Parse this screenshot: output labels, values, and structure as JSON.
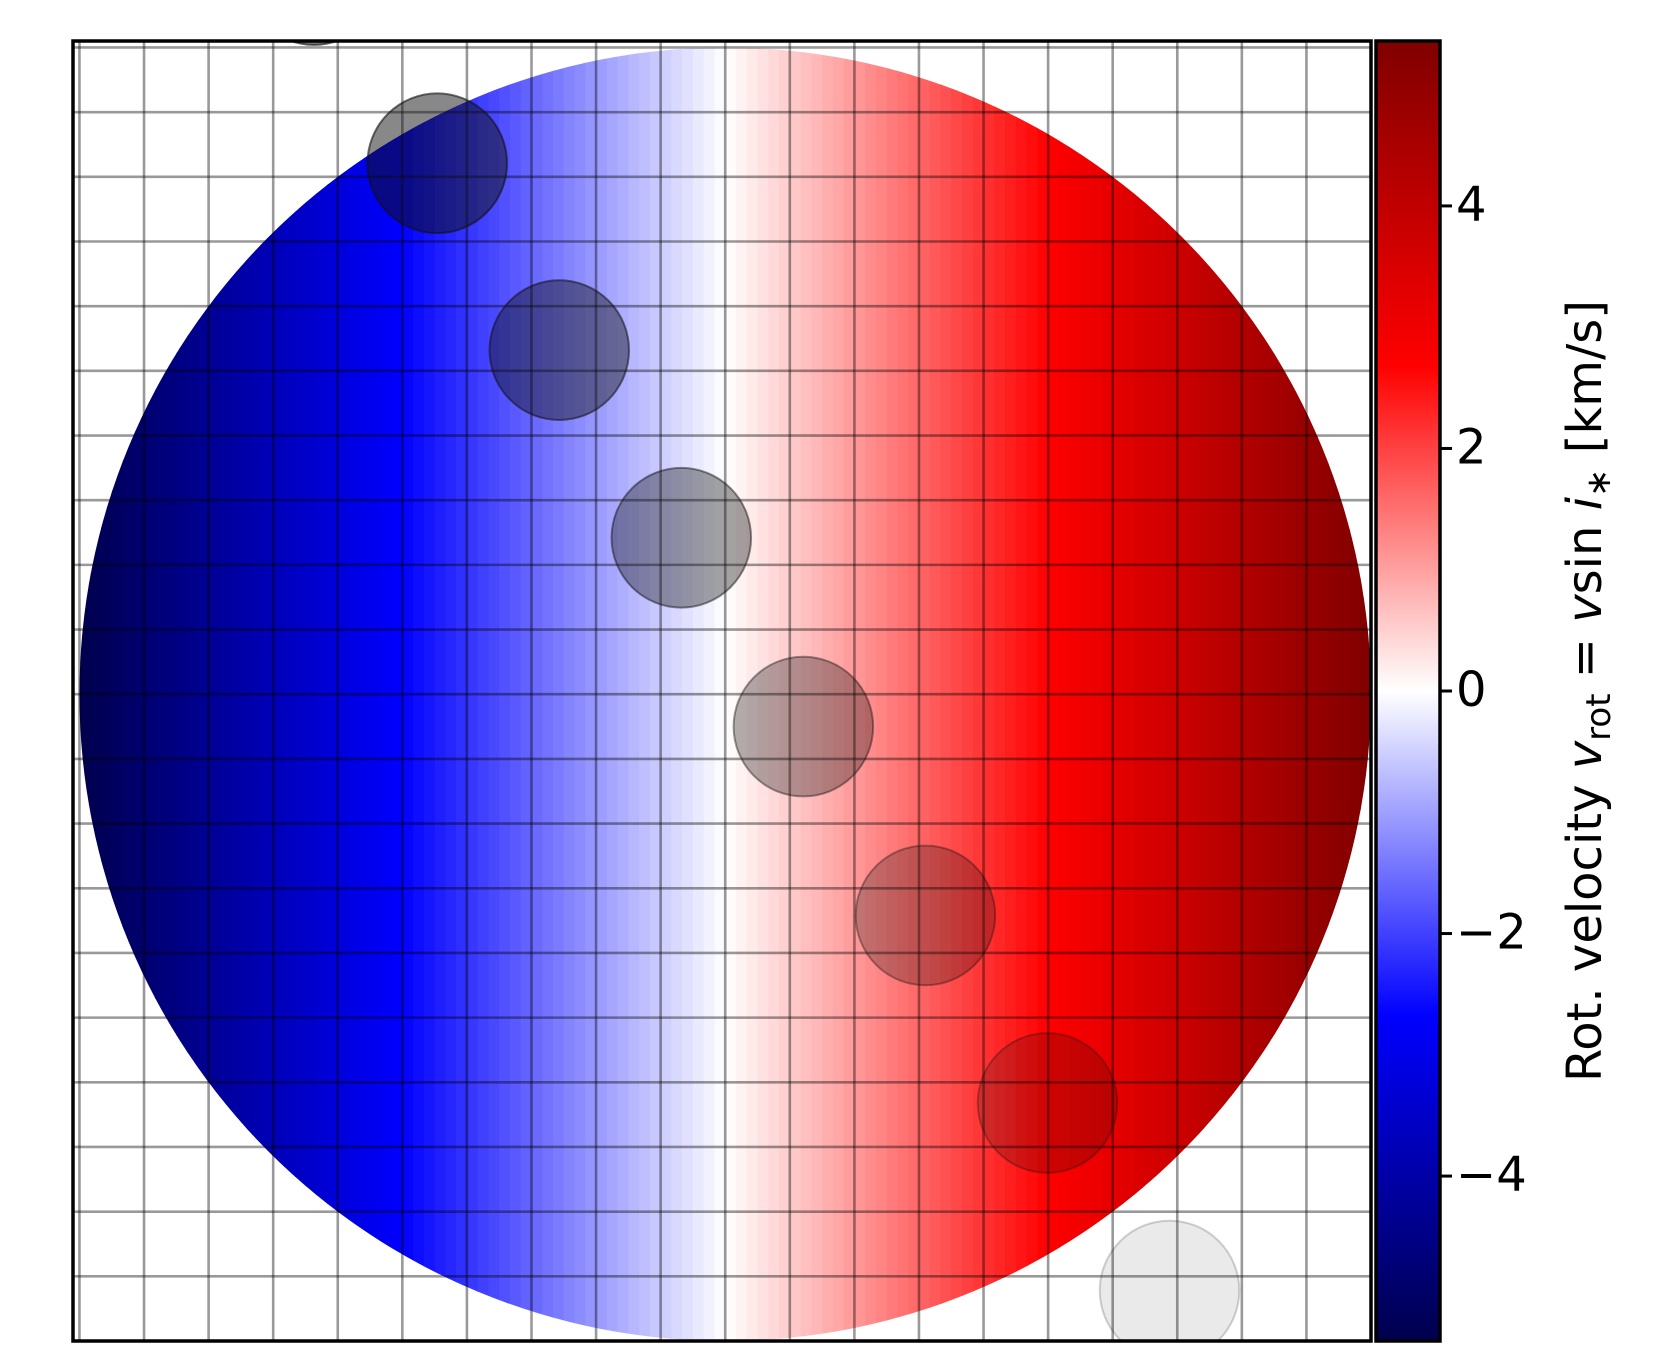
{
  "chart_data": {
    "type": "rotation-map",
    "xlim": [
      -1.01,
      1.0
    ],
    "ylim": [
      -1.0,
      1.01
    ],
    "xticks": [
      -1.0,
      -0.9,
      -0.8,
      -0.7,
      -0.6,
      -0.5,
      -0.4,
      -0.3,
      -0.2,
      -0.1,
      0,
      0.1,
      0.2,
      0.3,
      0.4,
      0.5,
      0.6,
      0.7,
      0.8,
      0.9,
      1.0
    ],
    "yticks": [
      -1.0,
      -0.9,
      -0.8,
      -0.7,
      -0.6,
      -0.5,
      -0.4,
      -0.3,
      -0.2,
      -0.1,
      0,
      0.1,
      0.2,
      0.3,
      0.4,
      0.5,
      0.6,
      0.7,
      0.8,
      0.9,
      1.0
    ],
    "grid": true,
    "star": {
      "radius": 1.0,
      "vsini": 5.36
    },
    "colormap": "seismic",
    "clim": [
      -5.36,
      5.36
    ],
    "cticks": [
      {
        "value": -4,
        "label": "−4"
      },
      {
        "value": -2,
        "label": "−2"
      },
      0,
      2,
      4
    ],
    "colorbar_label": [
      "Rot. velocity ",
      "v",
      "rot",
      " = ",
      "v",
      "sin",
      " i",
      "∗",
      "  [km/s]"
    ],
    "planet": {
      "color": "#111111",
      "radius": 0.108,
      "x": [
        -0.637,
        -0.446,
        -0.257,
        -0.068,
        0.121,
        0.31,
        0.499,
        0.688
      ],
      "y": [
        1.112,
        0.821,
        0.532,
        0.242,
        -0.05,
        -0.342,
        -0.632,
        -0.922
      ],
      "alpha": [
        0.55,
        0.5,
        0.44,
        0.38,
        0.32,
        0.26,
        0.2,
        0.09
      ]
    }
  }
}
